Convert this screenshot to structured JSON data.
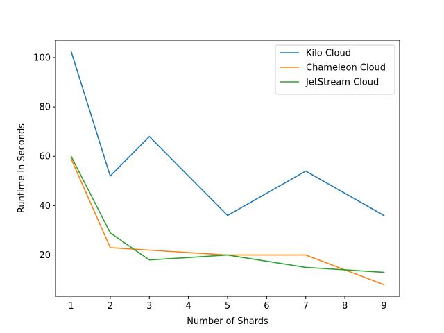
{
  "chart_data": {
    "type": "line",
    "title": "",
    "xlabel": "Number of Shards",
    "ylabel": "Runtime in Seconds",
    "xlim": [
      0.6,
      9.4
    ],
    "ylim": [
      3.3,
      107.0
    ],
    "xticks": [
      1,
      2,
      3,
      4,
      5,
      6,
      7,
      8,
      9
    ],
    "yticks": [
      20,
      40,
      60,
      80,
      100
    ],
    "grid": false,
    "legend_position": "top-right",
    "x": [
      1,
      2,
      3,
      5,
      7,
      9
    ],
    "series": [
      {
        "name": "Kilo Cloud",
        "color": "#1f77b4",
        "values": [
          102.5,
          52,
          68,
          36,
          54,
          36
        ]
      },
      {
        "name": "Chameleon Cloud",
        "color": "#ff7f0e",
        "values": [
          59,
          23,
          22,
          20,
          20,
          8
        ]
      },
      {
        "name": "JetStream Cloud",
        "color": "#2ca02c",
        "values": [
          60,
          29,
          18,
          20,
          15,
          13
        ]
      }
    ]
  }
}
